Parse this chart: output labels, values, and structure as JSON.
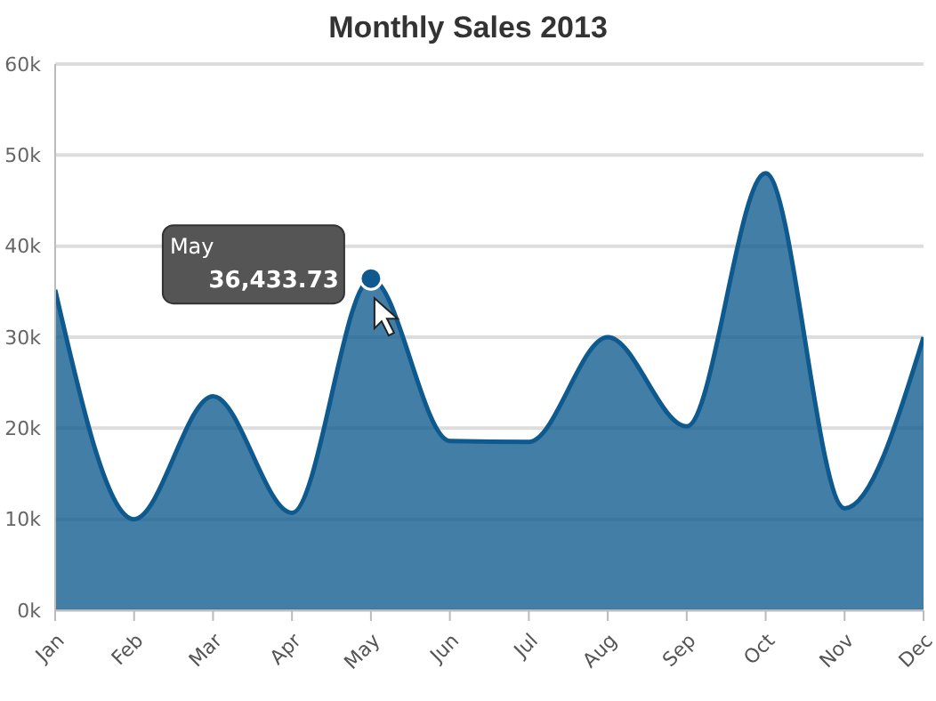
{
  "chart_data": {
    "type": "area",
    "title": "Monthly Sales 2013",
    "categories": [
      "Jan",
      "Feb",
      "Mar",
      "Apr",
      "May",
      "Jun",
      "Jul",
      "Aug",
      "Sep",
      "Oct",
      "Nov",
      "Dec"
    ],
    "series": [
      {
        "color": "#0e5a8e",
        "values": [
          35200,
          10000,
          23500,
          10700,
          36433.73,
          18600,
          18500,
          30000,
          20200,
          48000,
          11200,
          30000
        ],
        "value_labels": [
          null,
          null,
          null,
          null,
          "36,433.73",
          null,
          null,
          null,
          null,
          null,
          null,
          null
        ]
      }
    ],
    "ylim": [
      0,
      60000
    ],
    "yticks": [
      {
        "value": 0,
        "label": "0k"
      },
      {
        "value": 10000,
        "label": "10k"
      },
      {
        "value": 20000,
        "label": "20k"
      },
      {
        "value": 30000,
        "label": "30k"
      },
      {
        "value": 40000,
        "label": "40k"
      },
      {
        "value": 50000,
        "label": "50k"
      },
      {
        "value": 60000,
        "label": "60k"
      }
    ],
    "grid": "y",
    "legend": false,
    "annotations": [
      "May"
    ]
  }
}
